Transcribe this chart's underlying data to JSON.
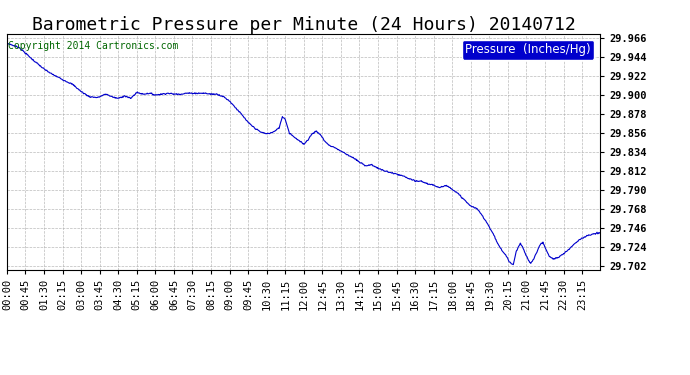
{
  "title": "Barometric Pressure per Minute (24 Hours) 20140712",
  "copyright": "Copyright 2014 Cartronics.com",
  "legend_label": "Pressure  (Inches/Hg)",
  "line_color": "#0000cc",
  "background_color": "#ffffff",
  "grid_color": "#aaaaaa",
  "ylim": [
    29.697,
    29.971
  ],
  "yticks": [
    29.702,
    29.724,
    29.746,
    29.768,
    29.79,
    29.812,
    29.834,
    29.856,
    29.878,
    29.9,
    29.922,
    29.944,
    29.966
  ],
  "xtick_labels": [
    "00:00",
    "00:45",
    "01:30",
    "02:15",
    "03:00",
    "03:45",
    "04:30",
    "05:15",
    "06:00",
    "06:45",
    "07:30",
    "08:15",
    "09:00",
    "09:45",
    "10:30",
    "11:15",
    "12:00",
    "12:45",
    "13:30",
    "14:15",
    "15:00",
    "15:45",
    "16:30",
    "17:15",
    "18:00",
    "18:45",
    "19:30",
    "20:15",
    "21:00",
    "21:45",
    "22:30",
    "23:15"
  ],
  "title_fontsize": 13,
  "tick_fontsize": 7.5,
  "legend_fontsize": 8.5,
  "copyright_fontsize": 7,
  "control_points": [
    [
      0,
      29.96
    ],
    [
      30,
      29.955
    ],
    [
      60,
      29.942
    ],
    [
      90,
      29.93
    ],
    [
      110,
      29.924
    ],
    [
      135,
      29.918
    ],
    [
      160,
      29.912
    ],
    [
      180,
      29.904
    ],
    [
      200,
      29.898
    ],
    [
      220,
      29.897
    ],
    [
      240,
      29.901
    ],
    [
      260,
      29.897
    ],
    [
      270,
      29.896
    ],
    [
      285,
      29.899
    ],
    [
      300,
      29.896
    ],
    [
      315,
      29.903
    ],
    [
      330,
      29.901
    ],
    [
      345,
      29.902
    ],
    [
      360,
      29.9
    ],
    [
      375,
      29.901
    ],
    [
      390,
      29.902
    ],
    [
      405,
      29.901
    ],
    [
      420,
      29.901
    ],
    [
      435,
      29.902
    ],
    [
      450,
      29.902
    ],
    [
      465,
      29.902
    ],
    [
      480,
      29.902
    ],
    [
      495,
      29.901
    ],
    [
      510,
      29.901
    ],
    [
      525,
      29.898
    ],
    [
      540,
      29.893
    ],
    [
      555,
      29.885
    ],
    [
      570,
      29.877
    ],
    [
      585,
      29.868
    ],
    [
      600,
      29.862
    ],
    [
      615,
      29.857
    ],
    [
      630,
      29.855
    ],
    [
      640,
      29.856
    ],
    [
      650,
      29.858
    ],
    [
      660,
      29.862
    ],
    [
      668,
      29.875
    ],
    [
      675,
      29.872
    ],
    [
      685,
      29.856
    ],
    [
      695,
      29.852
    ],
    [
      705,
      29.848
    ],
    [
      720,
      29.843
    ],
    [
      730,
      29.848
    ],
    [
      740,
      29.855
    ],
    [
      750,
      29.858
    ],
    [
      760,
      29.854
    ],
    [
      770,
      29.847
    ],
    [
      780,
      29.842
    ],
    [
      795,
      29.839
    ],
    [
      810,
      29.835
    ],
    [
      825,
      29.831
    ],
    [
      840,
      29.827
    ],
    [
      855,
      29.822
    ],
    [
      870,
      29.818
    ],
    [
      885,
      29.819
    ],
    [
      900,
      29.815
    ],
    [
      915,
      29.812
    ],
    [
      930,
      29.81
    ],
    [
      945,
      29.808
    ],
    [
      960,
      29.806
    ],
    [
      975,
      29.803
    ],
    [
      990,
      29.8
    ],
    [
      1005,
      29.8
    ],
    [
      1020,
      29.797
    ],
    [
      1035,
      29.795
    ],
    [
      1050,
      29.793
    ],
    [
      1065,
      29.795
    ],
    [
      1080,
      29.791
    ],
    [
      1095,
      29.785
    ],
    [
      1110,
      29.778
    ],
    [
      1120,
      29.773
    ],
    [
      1130,
      29.77
    ],
    [
      1140,
      29.768
    ],
    [
      1150,
      29.762
    ],
    [
      1160,
      29.755
    ],
    [
      1170,
      29.747
    ],
    [
      1180,
      29.738
    ],
    [
      1190,
      29.728
    ],
    [
      1200,
      29.72
    ],
    [
      1210,
      29.714
    ],
    [
      1218,
      29.707
    ],
    [
      1222,
      29.705
    ],
    [
      1228,
      29.703
    ],
    [
      1235,
      29.718
    ],
    [
      1245,
      29.728
    ],
    [
      1252,
      29.722
    ],
    [
      1258,
      29.715
    ],
    [
      1265,
      29.708
    ],
    [
      1270,
      29.705
    ],
    [
      1278,
      29.71
    ],
    [
      1285,
      29.718
    ],
    [
      1292,
      29.726
    ],
    [
      1300,
      29.729
    ],
    [
      1308,
      29.72
    ],
    [
      1315,
      29.713
    ],
    [
      1325,
      29.71
    ],
    [
      1335,
      29.711
    ],
    [
      1345,
      29.714
    ],
    [
      1355,
      29.718
    ],
    [
      1365,
      29.722
    ],
    [
      1375,
      29.727
    ],
    [
      1385,
      29.731
    ],
    [
      1395,
      29.734
    ],
    [
      1410,
      29.737
    ],
    [
      1425,
      29.739
    ],
    [
      1439,
      29.74
    ]
  ]
}
